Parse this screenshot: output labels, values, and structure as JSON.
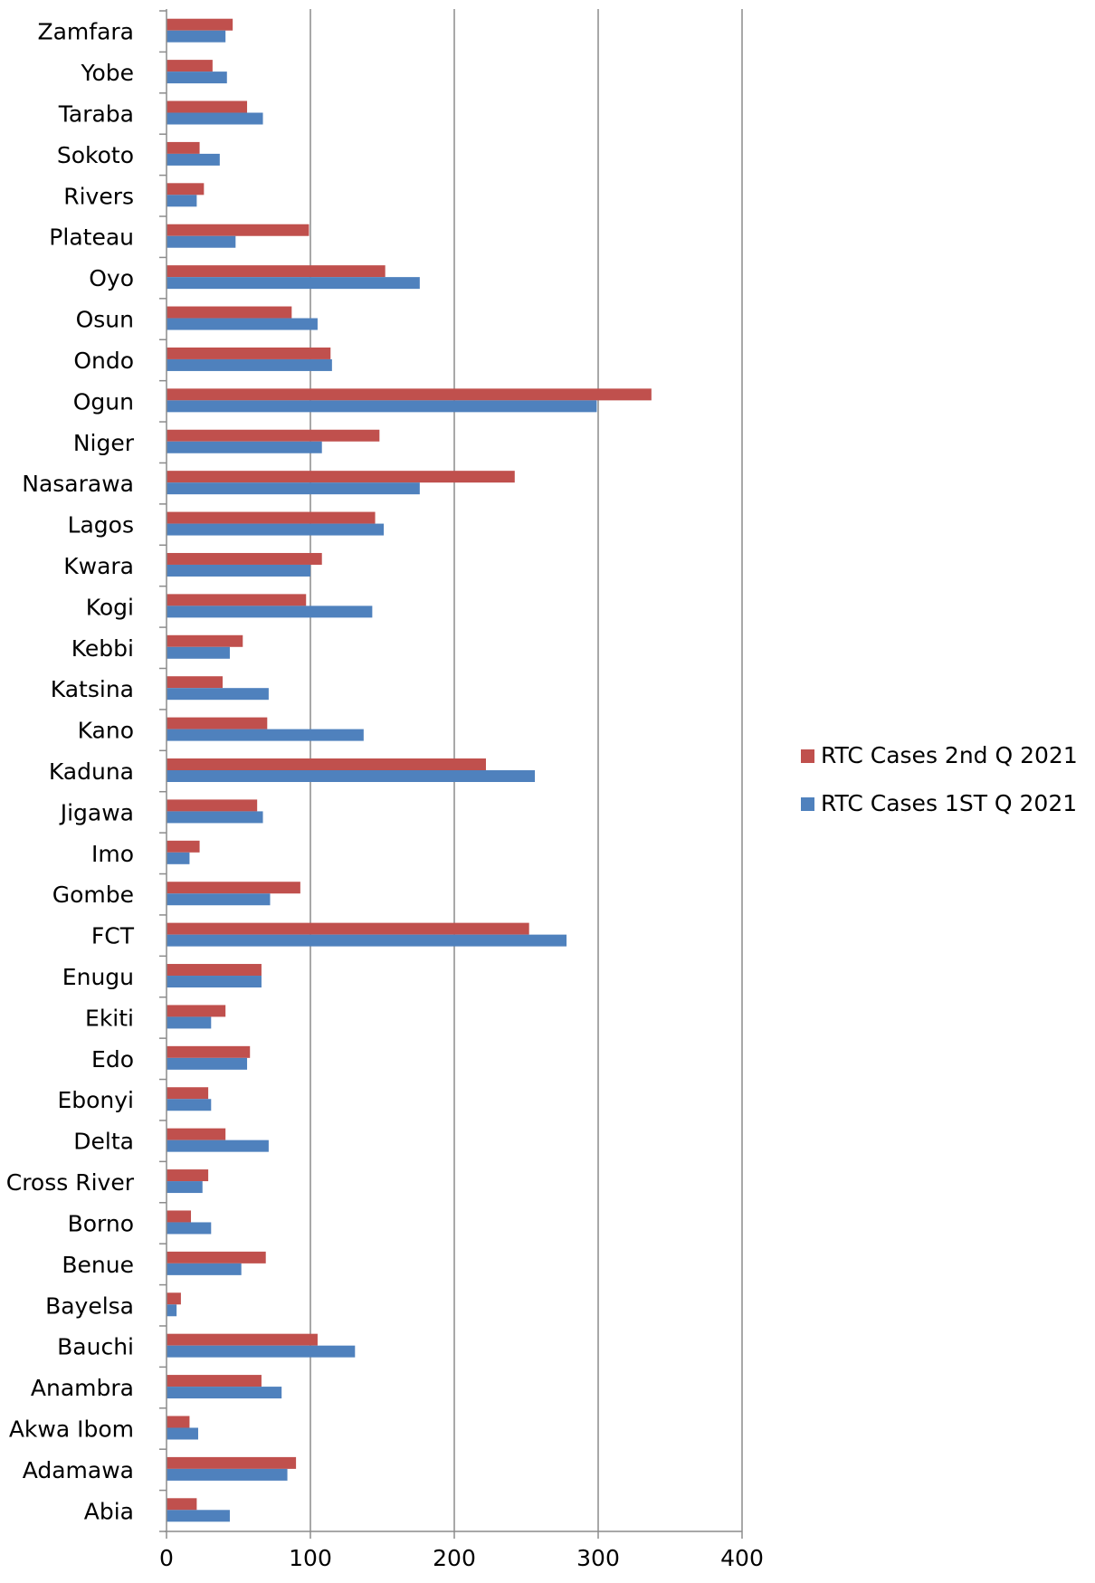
{
  "chart_data": {
    "type": "bar",
    "orientation": "horizontal",
    "title": "",
    "xlabel": "",
    "ylabel": "",
    "xlim": [
      0,
      400
    ],
    "x_ticks": [
      0,
      100,
      200,
      300,
      400
    ],
    "grid": "vertical major gridlines",
    "legend_position": "right",
    "categories": [
      "Zamfara",
      "Yobe",
      "Taraba",
      "Sokoto",
      "Rivers",
      "Plateau",
      "Oyo",
      "Osun",
      "Ondo",
      "Ogun",
      "Niger",
      "Nasarawa",
      "Lagos",
      "Kwara",
      "Kogi",
      "Kebbi",
      "Katsina",
      "Kano",
      "Kaduna",
      "Jigawa",
      "Imo",
      "Gombe",
      "FCT",
      "Enugu",
      "Ekiti",
      "Edo",
      "Ebonyi",
      "Delta",
      "Cross River",
      "Borno",
      "Benue",
      "Bayelsa",
      "Bauchi",
      "Anambra",
      "Akwa Ibom",
      "Adamawa",
      "Abia"
    ],
    "series": [
      {
        "name": "RTC Cases 2nd Q 2021",
        "color": "#c0504d",
        "values": [
          46,
          32,
          56,
          23,
          26,
          99,
          152,
          87,
          114,
          337,
          148,
          242,
          145,
          108,
          97,
          53,
          39,
          70,
          222,
          63,
          23,
          93,
          252,
          66,
          41,
          58,
          29,
          41,
          29,
          17,
          69,
          10,
          105,
          66,
          16,
          90,
          21
        ]
      },
      {
        "name": "RTC Cases 1ST Q 2021",
        "color": "#4f81bd",
        "values": [
          41,
          42,
          67,
          37,
          21,
          48,
          176,
          105,
          115,
          299,
          108,
          176,
          151,
          100,
          143,
          44,
          71,
          137,
          256,
          67,
          16,
          72,
          278,
          66,
          31,
          56,
          31,
          71,
          25,
          31,
          52,
          7,
          131,
          80,
          22,
          84,
          44
        ]
      }
    ]
  }
}
